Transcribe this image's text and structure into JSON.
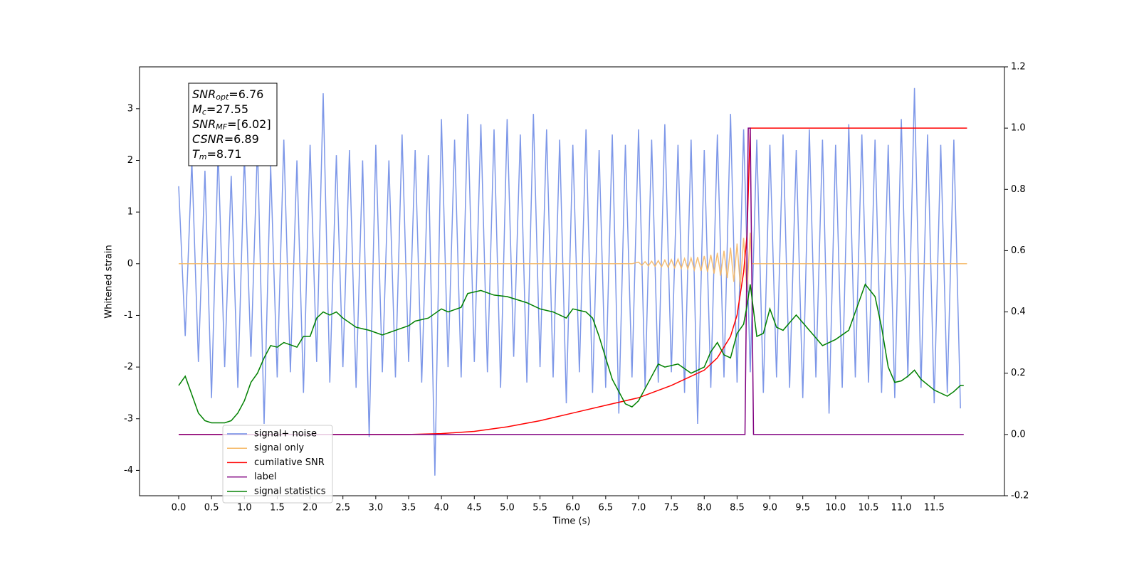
{
  "chart_data": {
    "type": "line",
    "xlabel": "Time (s)",
    "ylabel": "Whitened strain",
    "xlim": [
      -0.596,
      12.57
    ],
    "ylim": [
      -4.49,
      3.81
    ],
    "y2lim": [
      -0.2,
      1.2
    ],
    "xticks": [
      {
        "value": 0,
        "label": "0.0"
      },
      {
        "value": 0.5,
        "label": "0.5"
      },
      {
        "value": 1,
        "label": "1.0"
      },
      {
        "value": 1.5,
        "label": "1.5"
      },
      {
        "value": 2,
        "label": "2.0"
      },
      {
        "value": 2.5,
        "label": "2.5"
      },
      {
        "value": 3,
        "label": "3.0"
      },
      {
        "value": 3.5,
        "label": "3.5"
      },
      {
        "value": 4,
        "label": "4.0"
      },
      {
        "value": 4.5,
        "label": "4.5"
      },
      {
        "value": 5,
        "label": "5.0"
      },
      {
        "value": 5.5,
        "label": "5.5"
      },
      {
        "value": 6,
        "label": "6.0"
      },
      {
        "value": 6.5,
        "label": "6.5"
      },
      {
        "value": 7,
        "label": "7.0"
      },
      {
        "value": 7.5,
        "label": "7.5"
      },
      {
        "value": 8,
        "label": "8.0"
      },
      {
        "value": 8.5,
        "label": "8.5"
      },
      {
        "value": 9,
        "label": "9.0"
      },
      {
        "value": 9.5,
        "label": "9.5"
      },
      {
        "value": 10,
        "label": "10.0"
      },
      {
        "value": 10.5,
        "label": "10.5"
      },
      {
        "value": 11,
        "label": "11.0"
      },
      {
        "value": 11.5,
        "label": "11.5"
      }
    ],
    "yticks": [
      -4,
      -3,
      -2,
      -1,
      0,
      1,
      2,
      3
    ],
    "y2ticks": [
      -0.2,
      {
        "value": 0,
        "label": "0.0"
      },
      0.2,
      0.4,
      0.6,
      0.8,
      {
        "value": 1,
        "label": "1.0"
      },
      1.2
    ],
    "legend": "lower left",
    "annotation": [
      {
        "symbol": "SNR",
        "subscript": "opt",
        "text": "=6.76"
      },
      {
        "symbol": "M",
        "subscript": "c",
        "text": "=27.55"
      },
      {
        "symbol": "SNR",
        "subscript": "MF",
        "text": "=[6.02]"
      },
      {
        "symbol": "CSNR",
        "text": "=6.89"
      },
      {
        "symbol": "T",
        "subscript": "m",
        "text": "=8.71"
      }
    ],
    "series": [
      {
        "name": "signal+ noise",
        "color": "#6f8ce6",
        "axis": "y",
        "x": [
          0,
          0.1,
          0.2,
          0.3,
          0.4,
          0.5,
          0.6,
          0.7,
          0.8,
          0.9,
          1,
          1.1,
          1.2,
          1.3,
          1.4,
          1.5,
          1.6,
          1.7,
          1.8,
          1.9,
          2,
          2.1,
          2.2,
          2.3,
          2.4,
          2.5,
          2.6,
          2.7,
          2.8,
          2.9,
          3,
          3.1,
          3.2,
          3.3,
          3.4,
          3.5,
          3.6,
          3.7,
          3.8,
          3.9,
          4,
          4.1,
          4.2,
          4.3,
          4.4,
          4.5,
          4.6,
          4.7,
          4.8,
          4.9,
          5,
          5.1,
          5.2,
          5.3,
          5.4,
          5.5,
          5.6,
          5.7,
          5.8,
          5.9,
          6,
          6.1,
          6.2,
          6.3,
          6.4,
          6.5,
          6.6,
          6.7,
          6.8,
          6.9,
          7,
          7.1,
          7.2,
          7.3,
          7.4,
          7.5,
          7.6,
          7.7,
          7.8,
          7.9,
          8,
          8.1,
          8.2,
          8.3,
          8.4,
          8.5,
          8.6,
          8.7,
          8.8,
          8.9,
          9,
          9.1,
          9.2,
          9.3,
          9.4,
          9.5,
          9.6,
          9.7,
          9.8,
          9.9,
          10,
          10.1,
          10.2,
          10.3,
          10.4,
          10.5,
          10.6,
          10.7,
          10.8,
          10.9,
          11,
          11.1,
          11.2,
          11.3,
          11.4,
          11.5,
          11.6,
          11.7,
          11.8,
          11.9
        ],
        "values": [
          1.5,
          -1.4,
          2.0,
          -1.9,
          1.8,
          -2.6,
          2.2,
          -2.0,
          1.7,
          -2.4,
          2.1,
          -1.8,
          2.3,
          -3.1,
          1.9,
          -2.2,
          2.4,
          -2.1,
          2.0,
          -2.5,
          2.3,
          -1.9,
          3.3,
          -2.3,
          2.1,
          -2.0,
          2.2,
          -2.4,
          2.0,
          -3.35,
          2.3,
          -2.1,
          2.0,
          -2.2,
          2.5,
          -1.9,
          2.2,
          -2.3,
          2.1,
          -4.1,
          2.8,
          -2.0,
          2.4,
          -2.2,
          2.9,
          -1.9,
          2.7,
          -2.1,
          2.6,
          -2.4,
          2.8,
          -1.8,
          2.5,
          -2.3,
          2.9,
          -2.0,
          2.6,
          -2.2,
          2.4,
          -2.7,
          2.3,
          -2.1,
          2.6,
          -2.5,
          2.2,
          -2.4,
          2.5,
          -2.9,
          2.3,
          -2.2,
          2.6,
          -2.4,
          2.4,
          -2.3,
          2.7,
          -2.1,
          2.3,
          -2.5,
          2.4,
          -3.1,
          2.2,
          -2.4,
          2.5,
          -2.2,
          2.9,
          -2.3,
          2.6,
          -2.1,
          2.4,
          -2.5,
          2.3,
          -2.2,
          2.5,
          -2.4,
          2.2,
          -2.6,
          2.6,
          -2.2,
          2.4,
          -2.9,
          2.3,
          -2.4,
          2.7,
          -2.2,
          2.5,
          -2.3,
          2.4,
          -2.5,
          2.3,
          -2.6,
          2.8,
          -2.2,
          3.4,
          -2.4,
          2.5,
          -2.7,
          2.3,
          -2.5,
          2.4,
          -2.8
        ]
      },
      {
        "name": "signal only",
        "color": "#f5b866",
        "axis": "y",
        "x": [
          0,
          6.9,
          7.0,
          7.05,
          7.1,
          7.15,
          7.2,
          7.25,
          7.3,
          7.35,
          7.4,
          7.45,
          7.5,
          7.55,
          7.6,
          7.65,
          7.7,
          7.75,
          7.8,
          7.85,
          7.9,
          7.95,
          8.0,
          8.05,
          8.1,
          8.15,
          8.2,
          8.25,
          8.3,
          8.35,
          8.4,
          8.45,
          8.5,
          8.55,
          8.6,
          8.65,
          8.7,
          8.72,
          12.0
        ],
        "values": [
          0,
          0,
          0.03,
          -0.03,
          0.04,
          -0.04,
          0.05,
          -0.05,
          0.06,
          -0.06,
          0.07,
          -0.07,
          0.08,
          -0.08,
          0.09,
          -0.09,
          0.1,
          -0.1,
          0.11,
          -0.12,
          0.13,
          -0.14,
          0.15,
          -0.16,
          0.17,
          -0.19,
          0.21,
          -0.23,
          0.25,
          -0.28,
          0.31,
          -0.35,
          0.39,
          -0.44,
          0.5,
          -0.55,
          0.6,
          0,
          0
        ]
      },
      {
        "name": "cumilative SNR",
        "color": "#ff0000",
        "axis": "y2",
        "x": [
          0,
          3.5,
          4.0,
          4.5,
          5.0,
          5.5,
          6.0,
          6.5,
          7.0,
          7.5,
          8.0,
          8.2,
          8.4,
          8.5,
          8.6,
          8.65,
          8.7,
          12.0
        ],
        "values": [
          0,
          0,
          0.003,
          0.01,
          0.025,
          0.045,
          0.07,
          0.095,
          0.12,
          0.16,
          0.21,
          0.25,
          0.32,
          0.39,
          0.53,
          0.65,
          1.0,
          1.0
        ]
      },
      {
        "name": "label",
        "color": "#800080",
        "axis": "y2",
        "x": [
          0,
          8.62,
          8.67,
          8.7,
          8.75,
          11.95
        ],
        "values": [
          0,
          0,
          1,
          1,
          0,
          0
        ]
      },
      {
        "name": "signal statistics",
        "color": "#008000",
        "axis": "y2",
        "x": [
          0,
          0.1,
          0.2,
          0.3,
          0.4,
          0.5,
          0.7,
          0.8,
          0.9,
          1.0,
          1.1,
          1.2,
          1.3,
          1.4,
          1.5,
          1.6,
          1.8,
          1.9,
          2.0,
          2.1,
          2.2,
          2.3,
          2.4,
          2.5,
          2.7,
          2.9,
          3.1,
          3.3,
          3.5,
          3.6,
          3.8,
          4.0,
          4.1,
          4.3,
          4.4,
          4.6,
          4.8,
          5.0,
          5.3,
          5.5,
          5.7,
          5.9,
          6.0,
          6.2,
          6.3,
          6.4,
          6.5,
          6.6,
          6.8,
          6.9,
          7.0,
          7.1,
          7.3,
          7.4,
          7.6,
          7.8,
          8.0,
          8.1,
          8.2,
          8.3,
          8.4,
          8.5,
          8.6,
          8.65,
          8.7,
          8.8,
          8.9,
          9.0,
          9.1,
          9.2,
          9.4,
          9.6,
          9.8,
          10.0,
          10.2,
          10.3,
          10.45,
          10.6,
          10.7,
          10.8,
          10.9,
          11.0,
          11.1,
          11.2,
          11.3,
          11.5,
          11.7,
          11.8,
          11.9,
          11.95
        ],
        "values": [
          0.16,
          0.19,
          0.13,
          0.07,
          0.045,
          0.038,
          0.038,
          0.045,
          0.07,
          0.11,
          0.17,
          0.2,
          0.25,
          0.29,
          0.285,
          0.3,
          0.285,
          0.32,
          0.32,
          0.38,
          0.4,
          0.39,
          0.4,
          0.38,
          0.35,
          0.34,
          0.325,
          0.34,
          0.355,
          0.37,
          0.38,
          0.41,
          0.4,
          0.415,
          0.46,
          0.47,
          0.455,
          0.45,
          0.43,
          0.41,
          0.4,
          0.38,
          0.41,
          0.4,
          0.38,
          0.32,
          0.25,
          0.18,
          0.1,
          0.09,
          0.11,
          0.15,
          0.23,
          0.22,
          0.23,
          0.2,
          0.22,
          0.27,
          0.3,
          0.26,
          0.25,
          0.33,
          0.36,
          0.42,
          0.49,
          0.32,
          0.33,
          0.41,
          0.35,
          0.34,
          0.39,
          0.34,
          0.29,
          0.31,
          0.34,
          0.4,
          0.49,
          0.45,
          0.35,
          0.22,
          0.17,
          0.175,
          0.19,
          0.21,
          0.18,
          0.145,
          0.125,
          0.14,
          0.16,
          0.16
        ]
      }
    ]
  }
}
